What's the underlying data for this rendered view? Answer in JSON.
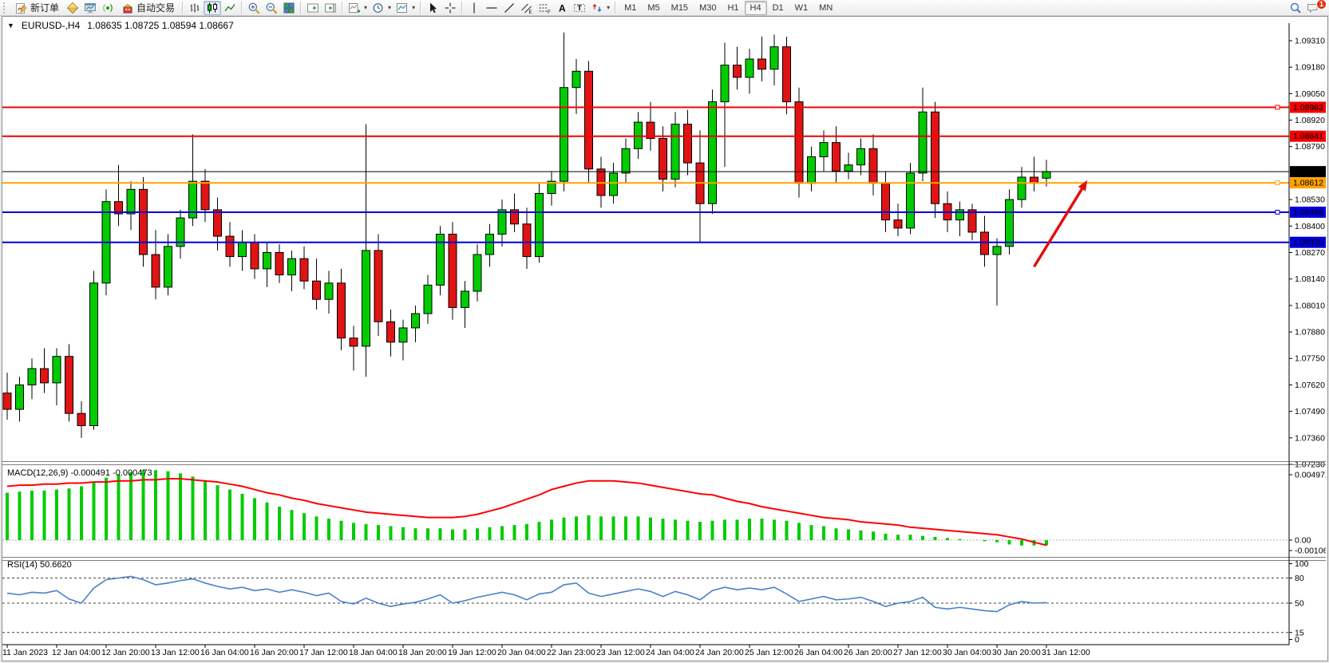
{
  "toolbar": {
    "new_order": "新订单",
    "auto_trading": "自动交易",
    "timeframes": [
      "M1",
      "M5",
      "M15",
      "M30",
      "H1",
      "H4",
      "D1",
      "W1",
      "MN"
    ],
    "active_timeframe": "H4",
    "notification_badge": "1"
  },
  "chart": {
    "title": "EURUSD-,H4",
    "ohlc": "1.08635 1.08725 1.08594 1.08667",
    "macd_label": "MACD(12,26,9) -0.000491 -0.000473",
    "rsi_label": "RSI(14) 50.6620"
  },
  "chart_data": {
    "type": "candlestick",
    "symbol": "EURUSD-",
    "timeframe": "H4",
    "current": {
      "open": 1.08635,
      "high": 1.08725,
      "low": 1.08594,
      "close": 1.08667
    },
    "price_axis": {
      "ticks": [
        1.0931,
        1.0918,
        1.0905,
        1.0892,
        1.0879,
        1.0853,
        1.084,
        1.0827,
        1.0814,
        1.0801,
        1.0788,
        1.0775,
        1.0762,
        1.0749,
        1.0736,
        1.0723
      ]
    },
    "hlines": [
      {
        "price": 1.08983,
        "color": "#f40000",
        "width": 2,
        "marker": true
      },
      {
        "price": 1.08841,
        "color": "#f40000",
        "width": 2,
        "marker": false
      },
      {
        "price": 1.08667,
        "color": "#000000",
        "width": 1,
        "marker": false
      },
      {
        "price": 1.08612,
        "color": "#ffa200",
        "width": 2,
        "marker": true
      },
      {
        "price": 1.08468,
        "color": "#0000dd",
        "width": 2,
        "marker": true
      },
      {
        "price": 1.0832,
        "color": "#0000dd",
        "width": 2,
        "marker": false
      }
    ],
    "x_labels": [
      "11 Jan 2023",
      "12 Jan 04:00",
      "12 Jan 20:00",
      "13 Jan 12:00",
      "16 Jan 04:00",
      "16 Jan 20:00",
      "17 Jan 12:00",
      "18 Jan 04:00",
      "18 Jan 20:00",
      "19 Jan 12:00",
      "20 Jan 04:00",
      "22 Jan 23:00",
      "23 Jan 12:00",
      "24 Jan 04:00",
      "24 Jan 20:00",
      "25 Jan 12:00",
      "26 Jan 04:00",
      "26 Jan 20:00",
      "27 Jan 12:00",
      "30 Jan 04:00",
      "30 Jan 20:00",
      "31 Jan 12:00"
    ],
    "candles": [
      [
        1.0758,
        1.0768,
        1.0745,
        1.075
      ],
      [
        1.075,
        1.0766,
        1.0744,
        1.0762
      ],
      [
        1.0762,
        1.0775,
        1.0755,
        1.077
      ],
      [
        1.077,
        1.078,
        1.0758,
        1.0763
      ],
      [
        1.0763,
        1.078,
        1.0752,
        1.0776
      ],
      [
        1.0776,
        1.0782,
        1.0744,
        1.0748
      ],
      [
        1.0748,
        1.0754,
        1.0736,
        1.0742
      ],
      [
        1.0742,
        1.0818,
        1.074,
        1.0812
      ],
      [
        1.0812,
        1.0858,
        1.0806,
        1.0852
      ],
      [
        1.0852,
        1.087,
        1.084,
        1.0846
      ],
      [
        1.0846,
        1.0862,
        1.0838,
        1.0858
      ],
      [
        1.0858,
        1.0864,
        1.082,
        1.0826
      ],
      [
        1.0826,
        1.0838,
        1.0804,
        1.081
      ],
      [
        1.081,
        1.0836,
        1.0806,
        1.083
      ],
      [
        1.083,
        1.0848,
        1.0824,
        1.0844
      ],
      [
        1.0844,
        1.0885,
        1.084,
        1.0862
      ],
      [
        1.0862,
        1.0868,
        1.0842,
        1.0848
      ],
      [
        1.0848,
        1.0854,
        1.0828,
        1.0835
      ],
      [
        1.0835,
        1.0842,
        1.082,
        1.0825
      ],
      [
        1.0825,
        1.0838,
        1.0818,
        1.0832
      ],
      [
        1.0832,
        1.0836,
        1.0814,
        1.0819
      ],
      [
        1.0819,
        1.0832,
        1.081,
        1.0827
      ],
      [
        1.0827,
        1.0831,
        1.0812,
        1.0816
      ],
      [
        1.0816,
        1.0828,
        1.0808,
        1.0824
      ],
      [
        1.0824,
        1.083,
        1.0809,
        1.0813
      ],
      [
        1.0813,
        1.0824,
        1.0799,
        1.0804
      ],
      [
        1.0804,
        1.0818,
        1.0797,
        1.0812
      ],
      [
        1.0812,
        1.0819,
        1.0779,
        1.0785
      ],
      [
        1.0785,
        1.0791,
        1.0769,
        1.0781
      ],
      [
        1.0781,
        1.089,
        1.0766,
        1.0828
      ],
      [
        1.0828,
        1.0836,
        1.0786,
        1.0793
      ],
      [
        1.0793,
        1.0799,
        1.0776,
        1.0783
      ],
      [
        1.0783,
        1.0794,
        1.0774,
        1.079
      ],
      [
        1.079,
        1.0801,
        1.0783,
        1.0797
      ],
      [
        1.0797,
        1.0816,
        1.0792,
        1.0811
      ],
      [
        1.0811,
        1.084,
        1.0806,
        1.0836
      ],
      [
        1.0836,
        1.0842,
        1.0794,
        1.08
      ],
      [
        1.08,
        1.0813,
        1.079,
        1.0808
      ],
      [
        1.0808,
        1.0831,
        1.0803,
        1.0826
      ],
      [
        1.0826,
        1.0841,
        1.082,
        1.0836
      ],
      [
        1.0836,
        1.0853,
        1.083,
        1.0848
      ],
      [
        1.0848,
        1.0856,
        1.0837,
        1.0841
      ],
      [
        1.0841,
        1.0849,
        1.0819,
        1.0825
      ],
      [
        1.0825,
        1.0861,
        1.0822,
        1.0856
      ],
      [
        1.0856,
        1.0867,
        1.085,
        1.0862
      ],
      [
        1.0862,
        1.0935,
        1.0857,
        1.0908
      ],
      [
        1.0908,
        1.0922,
        1.0895,
        1.0916
      ],
      [
        1.0916,
        1.0921,
        1.0861,
        1.0868
      ],
      [
        1.0868,
        1.0874,
        1.0849,
        1.0855
      ],
      [
        1.0855,
        1.0871,
        1.0851,
        1.0866
      ],
      [
        1.0866,
        1.0883,
        1.0861,
        1.0878
      ],
      [
        1.0878,
        1.0896,
        1.0873,
        1.0891
      ],
      [
        1.0891,
        1.0901,
        1.0877,
        1.0883
      ],
      [
        1.0883,
        1.0889,
        1.0857,
        1.0863
      ],
      [
        1.0863,
        1.0896,
        1.0859,
        1.089
      ],
      [
        1.089,
        1.0897,
        1.0865,
        1.0871
      ],
      [
        1.0871,
        1.0887,
        1.0832,
        1.0851
      ],
      [
        1.0851,
        1.0907,
        1.0846,
        1.0901
      ],
      [
        1.0901,
        1.093,
        1.0869,
        1.0919
      ],
      [
        1.0919,
        1.0928,
        1.0907,
        1.0913
      ],
      [
        1.0913,
        1.0927,
        1.0905,
        1.0922
      ],
      [
        1.0922,
        1.0933,
        1.0911,
        1.0917
      ],
      [
        1.0917,
        1.0934,
        1.0909,
        1.0928
      ],
      [
        1.0928,
        1.0933,
        1.0895,
        1.0901
      ],
      [
        1.0901,
        1.0908,
        1.0854,
        1.0861
      ],
      [
        1.0861,
        1.0879,
        1.0857,
        1.0874
      ],
      [
        1.0874,
        1.0887,
        1.0867,
        1.0881
      ],
      [
        1.0881,
        1.0889,
        1.0861,
        1.0867
      ],
      [
        1.0867,
        1.0876,
        1.0863,
        1.087
      ],
      [
        1.087,
        1.0883,
        1.0865,
        1.0878
      ],
      [
        1.0878,
        1.0885,
        1.0855,
        1.0861
      ],
      [
        1.0861,
        1.0867,
        1.0837,
        1.0843
      ],
      [
        1.0843,
        1.0851,
        1.0835,
        1.0839
      ],
      [
        1.0839,
        1.0871,
        1.0836,
        1.0866
      ],
      [
        1.0866,
        1.0908,
        1.0862,
        1.0896
      ],
      [
        1.0896,
        1.0901,
        1.0844,
        1.0851
      ],
      [
        1.0851,
        1.0857,
        1.0837,
        1.0843
      ],
      [
        1.0843,
        1.0852,
        1.0835,
        1.0848
      ],
      [
        1.0848,
        1.0851,
        1.0833,
        1.0837
      ],
      [
        1.0837,
        1.0845,
        1.082,
        1.0826
      ],
      [
        1.0826,
        1.0834,
        1.0801,
        1.083
      ],
      [
        1.083,
        1.0858,
        1.0826,
        1.0853
      ],
      [
        1.0853,
        1.0869,
        1.0849,
        1.0864
      ],
      [
        1.0864,
        1.0874,
        1.0857,
        1.0861
      ],
      [
        1.08635,
        1.08725,
        1.08594,
        1.08667
      ]
    ],
    "macd": {
      "params": "12,26,9",
      "value": -0.000491,
      "signal_value": -0.000473,
      "axis_labels": [
        "0.004972",
        "0.00",
        "-0.001063"
      ],
      "histogram": [
        0.0044,
        0.0045,
        0.0046,
        0.0046,
        0.0047,
        0.0048,
        0.005,
        0.0054,
        0.0058,
        0.0061,
        0.0063,
        0.0065,
        0.0065,
        0.0064,
        0.0062,
        0.0059,
        0.0055,
        0.0051,
        0.0047,
        0.0043,
        0.0039,
        0.0035,
        0.0031,
        0.0028,
        0.0025,
        0.0022,
        0.002,
        0.0018,
        0.0016,
        0.0015,
        0.0014,
        0.0013,
        0.0012,
        0.0011,
        0.0011,
        0.0011,
        0.001,
        0.001,
        0.0011,
        0.0012,
        0.0013,
        0.0014,
        0.0015,
        0.0017,
        0.0019,
        0.0021,
        0.0022,
        0.0023,
        0.0022,
        0.0022,
        0.0022,
        0.0022,
        0.0021,
        0.002,
        0.0019,
        0.0018,
        0.0017,
        0.0018,
        0.0019,
        0.0019,
        0.002,
        0.002,
        0.0019,
        0.0018,
        0.0016,
        0.0014,
        0.0013,
        0.0011,
        0.001,
        0.0009,
        0.0008,
        0.0006,
        0.0005,
        0.0005,
        0.0004,
        0.0003,
        0.0002,
        0.0001,
        0.0,
        -0.0001,
        -0.0002,
        -0.0004,
        -0.0005,
        -0.0005,
        -0.000491
      ],
      "signal": [
        0.005,
        0.0051,
        0.0051,
        0.0052,
        0.0052,
        0.0053,
        0.0053,
        0.0054,
        0.0054,
        0.0055,
        0.0055,
        0.0056,
        0.0056,
        0.0057,
        0.0057,
        0.0056,
        0.0055,
        0.0054,
        0.0052,
        0.005,
        0.0047,
        0.0044,
        0.0042,
        0.0039,
        0.0037,
        0.0034,
        0.0032,
        0.003,
        0.0028,
        0.0026,
        0.0025,
        0.0024,
        0.0023,
        0.0022,
        0.0021,
        0.0021,
        0.0021,
        0.0022,
        0.0024,
        0.0027,
        0.003,
        0.0034,
        0.0038,
        0.0042,
        0.0047,
        0.005,
        0.0053,
        0.0055,
        0.0055,
        0.0055,
        0.0054,
        0.0053,
        0.0051,
        0.0049,
        0.0047,
        0.0045,
        0.0043,
        0.0042,
        0.0039,
        0.0036,
        0.0034,
        0.0031,
        0.0029,
        0.0027,
        0.0025,
        0.0023,
        0.0021,
        0.002,
        0.0019,
        0.0017,
        0.0016,
        0.0015,
        0.0014,
        0.0012,
        0.0011,
        0.001,
        0.0009,
        0.0008,
        0.0007,
        0.0006,
        0.0005,
        0.0003,
        0.0001,
        -0.0002,
        -0.000473
      ]
    },
    "rsi": {
      "period": 14,
      "value": 50.662,
      "levels": [
        100,
        80,
        50,
        15,
        0
      ],
      "dashed_levels": [
        80,
        50,
        15
      ],
      "values": [
        62,
        60,
        63,
        62,
        65,
        55,
        50,
        68,
        78,
        80,
        82,
        78,
        72,
        74,
        77,
        79,
        74,
        70,
        67,
        69,
        65,
        67,
        63,
        66,
        63,
        59,
        62,
        52,
        49,
        56,
        50,
        46,
        49,
        51,
        55,
        60,
        50,
        53,
        57,
        60,
        63,
        60,
        54,
        61,
        63,
        72,
        74,
        62,
        58,
        61,
        64,
        67,
        64,
        58,
        64,
        60,
        54,
        65,
        69,
        66,
        68,
        66,
        69,
        61,
        52,
        55,
        58,
        54,
        55,
        57,
        52,
        46,
        50,
        52,
        57,
        45,
        43,
        45,
        43,
        41,
        40,
        48,
        52,
        50,
        50.662
      ]
    },
    "annotation_arrow": {
      "color": "#e01010",
      "from_bar": 83.0,
      "from_price": 1.082,
      "to_bar": 87.3,
      "to_price": 1.08625
    },
    "colors": {
      "bull": "#00cc00",
      "bear": "#e01414",
      "wick": "#000000",
      "macd_histogram": "#00cc00",
      "macd_signal": "#ff0000",
      "rsi_line": "#4682c8",
      "badge_text": "#ffffff"
    }
  }
}
